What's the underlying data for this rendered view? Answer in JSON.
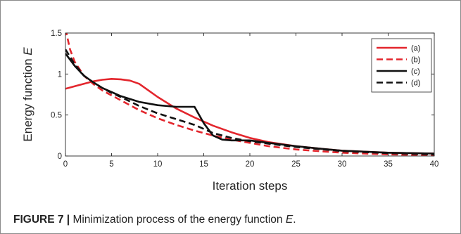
{
  "caption": {
    "label": "FIGURE 7 |",
    "text": " Minimization process of the energy function ",
    "variable": "E",
    "end": "."
  },
  "chart_data": {
    "type": "line",
    "xlabel": "Iteration steps",
    "ylabel": "Energy function E",
    "xlim": [
      0,
      40
    ],
    "ylim": [
      0,
      1.5
    ],
    "xticks": [
      0,
      5,
      10,
      15,
      20,
      25,
      30,
      35,
      40
    ],
    "yticks": [
      0,
      0.5,
      1,
      1.5
    ],
    "xtick_labels": [
      "0",
      "5",
      "10",
      "15",
      "20",
      "25",
      "30",
      "35",
      "40"
    ],
    "ytick_labels": [
      "0",
      "0.5",
      "1",
      "1.5"
    ],
    "grid": false,
    "legend_position": "top-right",
    "series": [
      {
        "name": "(a)",
        "color": "#e3262d",
        "dash": "solid",
        "x": [
          0,
          1,
          2,
          3,
          4,
          5,
          6,
          7,
          8,
          10,
          12,
          14,
          16,
          18,
          20,
          22,
          25,
          28,
          30,
          35,
          40
        ],
        "y": [
          0.82,
          0.85,
          0.88,
          0.91,
          0.93,
          0.94,
          0.935,
          0.92,
          0.88,
          0.72,
          0.58,
          0.47,
          0.37,
          0.29,
          0.22,
          0.17,
          0.12,
          0.085,
          0.065,
          0.04,
          0.03
        ]
      },
      {
        "name": "(b)",
        "color": "#e3262d",
        "dash": "dashed",
        "x": [
          0,
          0.5,
          1,
          2,
          3,
          4,
          5,
          6,
          8,
          10,
          12,
          14,
          16,
          18,
          20,
          22,
          25,
          28,
          30,
          35,
          40
        ],
        "y": [
          1.55,
          1.3,
          1.15,
          0.98,
          0.88,
          0.8,
          0.74,
          0.68,
          0.56,
          0.46,
          0.38,
          0.31,
          0.25,
          0.2,
          0.16,
          0.12,
          0.08,
          0.055,
          0.04,
          0.02,
          0.01
        ]
      },
      {
        "name": "(c)",
        "color": "#111111",
        "dash": "solid",
        "x": [
          0,
          1,
          2,
          3,
          4,
          5,
          6,
          8,
          10,
          12,
          14,
          15,
          16,
          17,
          18,
          20,
          22,
          25,
          28,
          30,
          35,
          40
        ],
        "y": [
          1.25,
          1.1,
          0.98,
          0.9,
          0.83,
          0.78,
          0.73,
          0.66,
          0.62,
          0.6,
          0.6,
          0.4,
          0.25,
          0.2,
          0.19,
          0.19,
          0.16,
          0.12,
          0.085,
          0.065,
          0.04,
          0.03
        ]
      },
      {
        "name": "(d)",
        "color": "#111111",
        "dash": "dashed",
        "x": [
          0,
          1,
          2,
          3,
          4,
          5,
          6,
          8,
          10,
          12,
          14,
          16,
          18,
          20,
          22,
          25,
          28,
          30,
          35,
          40
        ],
        "y": [
          1.3,
          1.12,
          0.98,
          0.9,
          0.83,
          0.77,
          0.72,
          0.61,
          0.52,
          0.45,
          0.38,
          0.28,
          0.22,
          0.18,
          0.15,
          0.11,
          0.08,
          0.06,
          0.035,
          0.02
        ]
      }
    ]
  }
}
